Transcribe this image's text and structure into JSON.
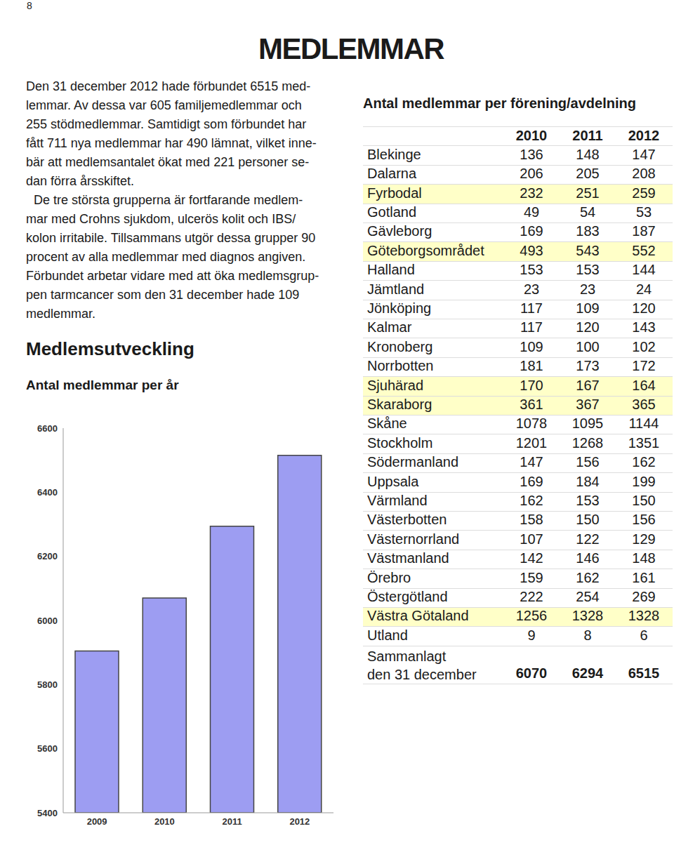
{
  "page_number": "8",
  "title": "MEDLEMMAR",
  "paragraphs": [
    [
      "Den 31 december 2012 hade förbundet 6515 med-",
      "lemmar. Av dessa var 605 familjemedlemmar och",
      "255 stödmedlemmar. Samtidigt som förbundet har",
      "fått 711 nya medlemmar har 490 lämnat, vilket inne-",
      "bär att medlemsantalet ökat med 221 personer se-",
      "dan förra årsskiftet."
    ],
    [
      "De tre största grupperna är fortfarande medlem-",
      "mar med Crohns sjukdom, ulcerös kolit och IBS/",
      "kolon irritabile. Tillsammans utgör dessa grupper 90",
      "procent av alla medlemmar med diagnos angiven.",
      "Förbundet arbetar vidare med att öka medlemsgrup-",
      "pen tarmcancer som den 31 december hade 109",
      "medlemmar."
    ]
  ],
  "section_title": "Medlemsutveckling",
  "chart_title": "Antal medlemmar per år",
  "chart_data": {
    "type": "bar",
    "categories": [
      "2009",
      "2010",
      "2011",
      "2012"
    ],
    "values": [
      5905,
      6070,
      6294,
      6515
    ],
    "color": "#9d9df2",
    "ylim": [
      5400,
      6600
    ],
    "yticks": [
      5400,
      5600,
      5800,
      6000,
      6200,
      6400,
      6600
    ],
    "grid": false
  },
  "table": {
    "title": "Antal medlemmar per förening/avdelning",
    "header": [
      2010,
      2011,
      2012
    ],
    "rows": [
      {
        "name": "Blekinge",
        "values": [
          136,
          148,
          147
        ]
      },
      {
        "name": "Dalarna",
        "values": [
          206,
          205,
          208
        ]
      },
      {
        "name": "Fyrbodal",
        "values": [
          232,
          251,
          259
        ]
      },
      {
        "name": "Gotland",
        "values": [
          49,
          54,
          53
        ]
      },
      {
        "name": "Gävleborg",
        "values": [
          169,
          183,
          187
        ]
      },
      {
        "name": "Göteborgsområdet",
        "values": [
          493,
          543,
          552
        ]
      },
      {
        "name": "Halland",
        "values": [
          153,
          153,
          144
        ]
      },
      {
        "name": "Jämtland",
        "values": [
          23,
          23,
          24
        ]
      },
      {
        "name": "Jönköping",
        "values": [
          117,
          109,
          120
        ]
      },
      {
        "name": "Kalmar",
        "values": [
          117,
          120,
          143
        ]
      },
      {
        "name": "Kronoberg",
        "values": [
          109,
          100,
          102
        ]
      },
      {
        "name": "Norrbotten",
        "values": [
          181,
          173,
          172
        ]
      },
      {
        "name": "Sjuhärad",
        "values": [
          170,
          167,
          164
        ]
      },
      {
        "name": "Skaraborg",
        "values": [
          361,
          367,
          365
        ]
      },
      {
        "name": "Skåne",
        "values": [
          1078,
          1095,
          1144
        ]
      },
      {
        "name": "Stockholm",
        "values": [
          1201,
          1268,
          1351
        ]
      },
      {
        "name": "Södermanland",
        "values": [
          147,
          156,
          162
        ]
      },
      {
        "name": "Uppsala",
        "values": [
          169,
          184,
          199
        ]
      },
      {
        "name": "Värmland",
        "values": [
          162,
          153,
          150
        ]
      },
      {
        "name": "Västerbotten",
        "values": [
          158,
          150,
          156
        ]
      },
      {
        "name": "Västernorrland",
        "values": [
          107,
          122,
          129
        ]
      },
      {
        "name": "Västmanland",
        "values": [
          142,
          146,
          148
        ]
      },
      {
        "name": "Örebro",
        "values": [
          159,
          162,
          161
        ]
      },
      {
        "name": "Östergötland",
        "values": [
          222,
          254,
          269
        ]
      },
      {
        "name": "Västra Götaland",
        "values": [
          1256,
          1328,
          1328
        ]
      },
      {
        "name": "Utland",
        "values": [
          9,
          8,
          6
        ]
      }
    ],
    "total": {
      "label": [
        "Sammanlagt",
        "den 31 december"
      ],
      "values": [
        6070,
        6294,
        6515
      ]
    }
  }
}
